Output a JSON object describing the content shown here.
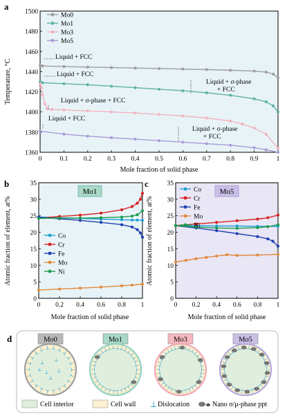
{
  "chart_data": [
    {
      "type": "line",
      "panel": "a",
      "xlabel": "Mole fraction of solid phase",
      "ylabel": "Temperature, °C",
      "xlim": [
        0,
        1
      ],
      "ylim": [
        1360,
        1500
      ],
      "xticks": [
        "0",
        "0.1",
        "0.2",
        "0.3",
        "0.4",
        "0.5",
        "0.6",
        "0.7",
        "0.8",
        "0.9",
        "1"
      ],
      "yticks": [
        "1360",
        "1380",
        "1400",
        "1420",
        "1440",
        "1460",
        "1480",
        "1500"
      ],
      "legend_position": "top-left",
      "series": [
        {
          "name": "Mo0",
          "color": "#9e9e9e",
          "x": [
            0,
            0.01,
            0.1,
            0.2,
            0.3,
            0.4,
            0.5,
            0.6,
            0.7,
            0.8,
            0.9,
            0.95,
            0.98,
            1.0
          ],
          "y": [
            1446,
            1445.6,
            1445,
            1444.5,
            1444,
            1443.5,
            1443,
            1442.5,
            1442,
            1441.3,
            1440.5,
            1439.5,
            1437.5,
            1434
          ]
        },
        {
          "name": "Mo1",
          "color": "#5fb3a4",
          "x": [
            0,
            0.01,
            0.1,
            0.2,
            0.3,
            0.4,
            0.5,
            0.6,
            0.7,
            0.8,
            0.9,
            0.95,
            0.98,
            1.0
          ],
          "y": [
            1430,
            1429,
            1428,
            1427,
            1425.5,
            1424,
            1422.5,
            1421,
            1419,
            1416.5,
            1413,
            1410,
            1406,
            1400
          ]
        },
        {
          "name": "Mo3",
          "color": "#f2b3c0",
          "x": [
            0,
            0.005,
            0.01,
            0.02,
            0.03,
            0.05,
            0.1,
            0.2,
            0.3,
            0.4,
            0.5,
            0.6,
            0.7,
            0.8,
            0.85,
            0.9,
            0.95,
            1.0
          ],
          "y": [
            1428,
            1424,
            1417,
            1408,
            1403,
            1402.5,
            1402,
            1401,
            1400,
            1399,
            1397.5,
            1396,
            1394,
            1391,
            1388,
            1384,
            1378,
            1364
          ]
        },
        {
          "name": "Mo5",
          "color": "#a79bd8",
          "x": [
            0,
            0.1,
            0.2,
            0.3,
            0.4,
            0.5,
            0.6,
            0.7,
            0.8,
            0.9,
            0.95,
            1.0
          ],
          "y": [
            1381,
            1378,
            1376,
            1374.5,
            1373,
            1371.5,
            1370,
            1368.5,
            1367,
            1364.5,
            1362.5,
            1360
          ]
        }
      ],
      "annotations": [
        {
          "lines": [
            "Liquid + FCC"
          ]
        },
        {
          "lines": [
            "Liquid + FCC"
          ]
        },
        {
          "lines": [
            "Liquid + σ-phase",
            "+ FCC"
          ]
        },
        {
          "lines": [
            "Liquid + σ-phase + FCC"
          ]
        },
        {
          "lines": [
            "Liquid + FCC"
          ]
        },
        {
          "lines": [
            "Liquid + σ-phase",
            "+ FCC"
          ]
        }
      ]
    },
    {
      "type": "line",
      "panel": "b",
      "panel_title": "Mo1",
      "xlabel": "Mole fraction of solid phase",
      "ylabel": "Atomic fraction of element, at%",
      "xlim": [
        0,
        1
      ],
      "ylim": [
        0,
        35
      ],
      "xticks": [
        "0",
        "0.2",
        "0.4",
        "0.6",
        "0.8",
        "1"
      ],
      "yticks": [
        "0",
        "5",
        "10",
        "15",
        "20",
        "25",
        "30",
        "35"
      ],
      "legend_position": "left",
      "series": [
        {
          "name": "Co",
          "color": "#1e9fd6",
          "x": [
            0,
            0.2,
            0.4,
            0.6,
            0.8,
            0.9,
            0.95,
            1.0
          ],
          "y": [
            24.6,
            24.4,
            24.2,
            24.0,
            23.8,
            23.7,
            23.7,
            23.6
          ]
        },
        {
          "name": "Cr",
          "color": "#d62020",
          "x": [
            0,
            0.2,
            0.4,
            0.6,
            0.8,
            0.9,
            0.95,
            0.98,
            1.0
          ],
          "y": [
            24.3,
            24.8,
            25.2,
            25.8,
            26.8,
            27.8,
            28.8,
            30,
            31.8
          ]
        },
        {
          "name": "Fe",
          "color": "#1d3fb0",
          "x": [
            0,
            0.2,
            0.4,
            0.6,
            0.8,
            0.9,
            0.95,
            0.98,
            1.0
          ],
          "y": [
            24.6,
            24.1,
            23.6,
            23.0,
            22.3,
            21.6,
            20.8,
            19.8,
            18.5
          ]
        },
        {
          "name": "Mo",
          "color": "#e08a3c",
          "x": [
            0,
            0.2,
            0.4,
            0.6,
            0.8,
            0.9,
            1.0
          ],
          "y": [
            2.5,
            2.8,
            3.1,
            3.4,
            3.8,
            4.0,
            4.3
          ]
        },
        {
          "name": "Ni",
          "color": "#1c9c4a",
          "x": [
            0,
            0.2,
            0.4,
            0.6,
            0.8,
            0.9,
            0.95,
            1.0
          ],
          "y": [
            24.2,
            24.3,
            24.3,
            24.4,
            24.6,
            24.9,
            25.3,
            26.5
          ]
        }
      ]
    },
    {
      "type": "line",
      "panel": "c",
      "panel_title": "Mo5",
      "xlabel": "Mole fraction of solid phase",
      "ylabel": "Atomic fraction of element, at%",
      "xlim": [
        0,
        1
      ],
      "ylim": [
        0,
        35
      ],
      "xticks": [
        "0",
        "0.2",
        "0.4",
        "0.6",
        "0.8",
        "1"
      ],
      "yticks": [
        "0",
        "5",
        "10",
        "15",
        "20",
        "25",
        "30",
        "35"
      ],
      "legend_position": "top-left",
      "series": [
        {
          "name": "Co",
          "color": "#1e9fd6",
          "x": [
            0,
            0.2,
            0.4,
            0.6,
            0.8,
            1.0
          ],
          "y": [
            22.1,
            22.0,
            21.9,
            21.9,
            21.8,
            21.8
          ]
        },
        {
          "name": "Cr",
          "color": "#d62020",
          "x": [
            0,
            0.2,
            0.4,
            0.6,
            0.8,
            0.9,
            1.0
          ],
          "y": [
            22.0,
            22.5,
            23.0,
            23.5,
            24.0,
            24.4,
            25.2
          ]
        },
        {
          "name": "Fe",
          "color": "#1d3fb0",
          "x": [
            0,
            0.2,
            0.4,
            0.6,
            0.8,
            0.9,
            0.95,
            1.0
          ],
          "y": [
            22.0,
            21.3,
            20.5,
            19.6,
            18.7,
            18.0,
            17.3,
            15.8
          ]
        },
        {
          "name": "Mo",
          "color": "#e08a3c",
          "x": [
            0,
            0.1,
            0.2,
            0.3,
            0.4,
            0.5,
            0.6,
            0.8,
            1.0
          ],
          "y": [
            11.0,
            11.5,
            12.0,
            12.4,
            12.8,
            13.2,
            13.0,
            13.1,
            13.3
          ]
        },
        {
          "name": "Ni",
          "color": "#1c9c4a",
          "x": [
            0,
            0.2,
            0.4,
            0.6,
            0.8,
            0.9,
            1.0
          ],
          "y": [
            22.0,
            21.6,
            21.3,
            21.2,
            21.4,
            21.7,
            22.3
          ]
        }
      ]
    }
  ],
  "panel_letters": {
    "a": "a",
    "b": "b",
    "c": "c",
    "d": "d"
  },
  "schematic": {
    "cells": [
      {
        "label": "Mo0",
        "label_bg": "#b8b8b8",
        "ring": "#9e9e9e",
        "dislocations": 22,
        "precipitates": 0
      },
      {
        "label": "Mo1",
        "label_bg": "#a9d8c6",
        "ring": "#8fd1c2",
        "dislocations": 34,
        "precipitates": 2
      },
      {
        "label": "Mo3",
        "label_bg": "#f5b8c0",
        "ring": "#f2a9b5",
        "dislocations": 38,
        "precipitates": 6
      },
      {
        "label": "Mo5",
        "label_bg": "#c9bfe6",
        "ring": "#b3a8de",
        "dislocations": 40,
        "precipitates": 14
      }
    ],
    "legend": {
      "cell_interior": "Cell interior",
      "cell_wall": "Cell wall",
      "dislocation_symbol": "⊥",
      "dislocation": "Dislocation",
      "precipitate": "Nano σ/μ-phase ppt"
    },
    "colors": {
      "interior": "#dfeedd",
      "wall": "#fbf0cf",
      "dislocation": "#1e9fd6",
      "precipitate": "#777777"
    }
  }
}
